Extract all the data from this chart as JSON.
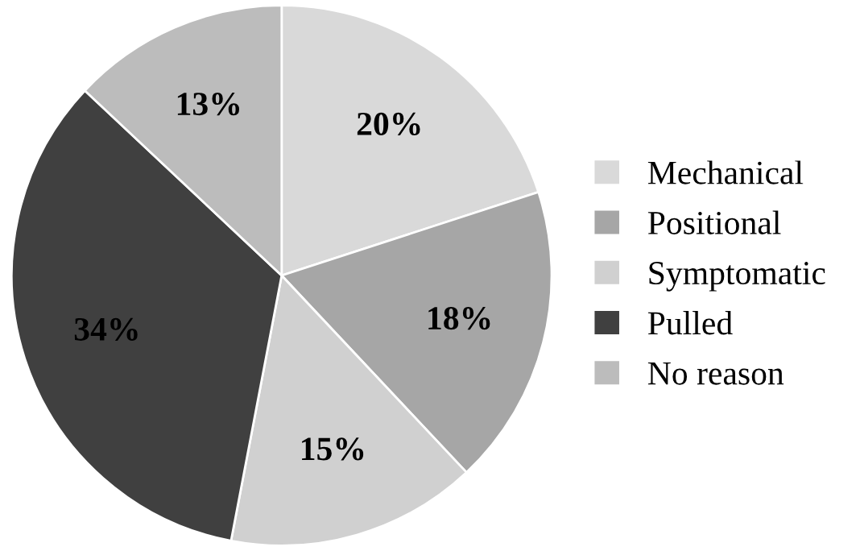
{
  "chart_data": {
    "type": "pie",
    "categories": [
      "Mechanical",
      "Positional",
      "Symptomatic",
      "Pulled",
      "No reason"
    ],
    "values": [
      20,
      18,
      15,
      34,
      13
    ],
    "colors": [
      "#d9d9d9",
      "#a6a6a6",
      "#d0d0d0",
      "#404040",
      "#bcbcbc"
    ],
    "value_labels": [
      "20%",
      "18%",
      "15%",
      "34%",
      "13%"
    ],
    "legend": "right"
  }
}
